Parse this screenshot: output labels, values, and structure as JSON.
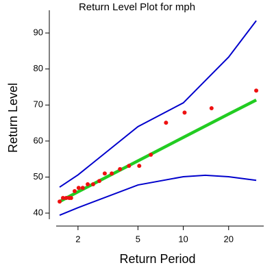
{
  "chart_data": {
    "type": "scatter",
    "title": "Return Level Plot for mph",
    "xlabel": "Return Period",
    "ylabel": "Return Level",
    "xscale": "log",
    "xlim": [
      1.29,
      34.2
    ],
    "ylim": [
      36.4,
      96.3
    ],
    "xticks": [
      2,
      5,
      10,
      20
    ],
    "yticks": [
      40,
      50,
      60,
      70,
      80,
      90
    ],
    "series": [
      {
        "style": "line",
        "color": "#0000cc",
        "width": 2,
        "x": [
          1.51,
          2,
          5,
          10,
          20,
          30.5
        ],
        "values": [
          47.2,
          50.6,
          64.0,
          70.6,
          83.3,
          93.4
        ]
      },
      {
        "style": "line",
        "color": "#0000cc",
        "width": 2,
        "x": [
          1.51,
          2,
          5,
          10,
          14,
          20,
          30.5
        ],
        "values": [
          39.4,
          41.5,
          47.8,
          50.1,
          50.5,
          50.1,
          49.1
        ]
      },
      {
        "style": "line",
        "color": "#22cc22",
        "width": 4.5,
        "x": [
          1.51,
          2,
          5,
          10,
          20,
          30.5
        ],
        "values": [
          43.2,
          45.9,
          54.5,
          61.0,
          67.5,
          71.4
        ]
      },
      {
        "style": "points",
        "color": "#ee1111",
        "x": [
          1.51,
          1.59,
          1.67,
          1.75,
          1.8,
          1.9,
          2.02,
          2.15,
          2.32,
          2.52,
          2.77,
          3.01,
          3.35,
          3.8,
          4.36,
          5.1,
          6.09,
          7.68,
          10.2,
          15.4,
          30.5
        ],
        "values": [
          43.2,
          44.2,
          44.2,
          44.2,
          44.2,
          46.1,
          47.0,
          47.0,
          48.0,
          48.0,
          48.9,
          51.0,
          51.0,
          52.2,
          53.1,
          53.1,
          56.2,
          65.1,
          67.9,
          69.1,
          74.0
        ]
      }
    ]
  }
}
